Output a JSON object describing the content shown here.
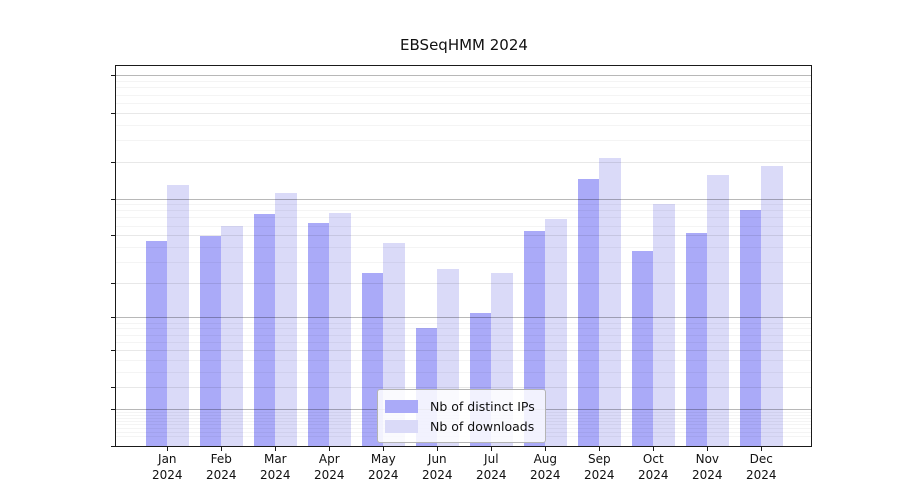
{
  "chart_data": {
    "type": "bar",
    "title": "EBSeqHMM 2024",
    "categories": [
      "Jan",
      "Feb",
      "Mar",
      "Apr",
      "May",
      "Jun",
      "Jul",
      "Aug",
      "Sep",
      "Oct",
      "Nov",
      "Dec"
    ],
    "x_year_label": "2024",
    "series": [
      {
        "name": "Nb of distinct IPs",
        "color": "#aaaaf8",
        "values": [
          45,
          49,
          74,
          63,
          24,
          8,
          11,
          54,
          145,
          37,
          52,
          80
        ]
      },
      {
        "name": "Nb of downloads",
        "color": "#dadaf8",
        "values": [
          128,
          60,
          110,
          76,
          43,
          26,
          24,
          68,
          215,
          90,
          157,
          184
        ]
      }
    ],
    "y_scale": "log1p",
    "y_ticks": [
      0,
      1,
      2,
      5,
      10,
      20,
      50,
      100,
      200,
      500,
      1000
    ],
    "y_decade_ticks": [
      1,
      10,
      100,
      1000
    ],
    "y_minor_ticks": [
      0.2,
      0.3,
      0.4,
      0.5,
      0.6,
      0.7,
      0.8,
      0.9,
      3,
      4,
      6,
      7,
      8,
      9,
      30,
      40,
      60,
      70,
      80,
      90,
      300,
      400,
      600,
      700,
      800,
      900
    ],
    "ylim": [
      0,
      1200
    ],
    "grid": true,
    "legend_position": "bottom-center",
    "legend": [
      "Nb of distinct IPs",
      "Nb of downloads"
    ]
  },
  "colors": {
    "ips_bar": "#aaaaf8",
    "downloads_bar": "#dadaf8",
    "axis": "#1a1a1a",
    "background": "#ffffff"
  }
}
